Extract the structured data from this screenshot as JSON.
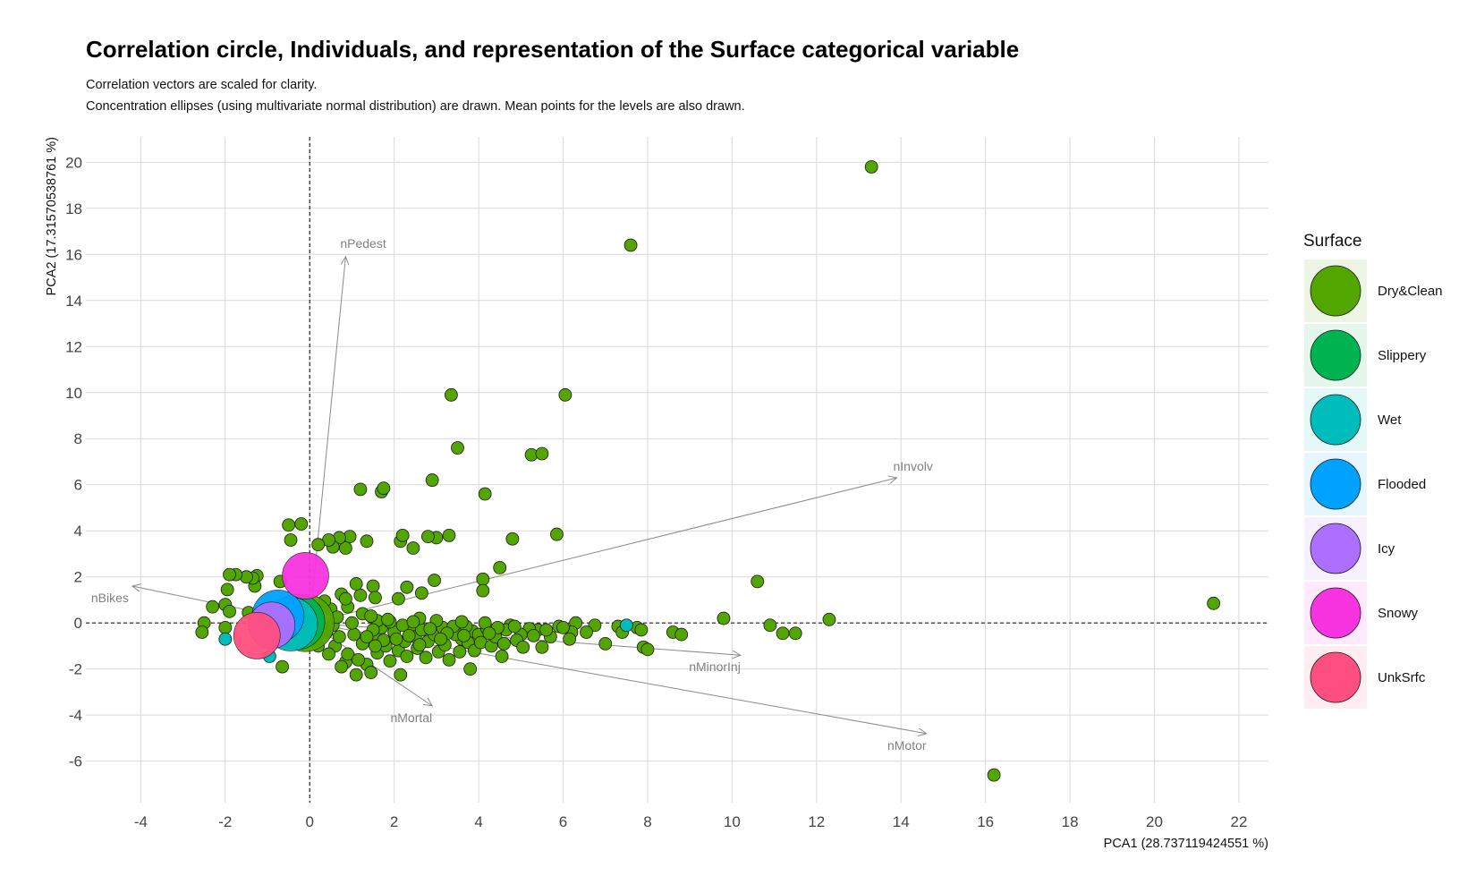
{
  "chart_data": {
    "type": "scatter",
    "title": "Correlation circle, Individuals, and representation of the Surface categorical variable",
    "subtitle_lines": [
      "Correlation vectors are scaled for clarity.",
      "Concentration ellipses (using multivariate normal distribution) are drawn. Mean points for the levels are also drawn."
    ],
    "xlabel": "PCA1 (28.737119424551 %)",
    "ylabel": "PCA2 (17.31570538761 %)",
    "xlim": [
      -5.3,
      22.7
    ],
    "ylim": [
      -7.8,
      21.1
    ],
    "x_ticks": [
      -4,
      -2,
      0,
      2,
      4,
      6,
      8,
      10,
      12,
      14,
      16,
      18,
      20,
      22
    ],
    "y_ticks": [
      -6,
      -4,
      -2,
      0,
      2,
      4,
      6,
      8,
      10,
      12,
      14,
      16,
      18,
      20
    ],
    "grid": true,
    "legend": {
      "title": "Surface",
      "position": "right",
      "entries": [
        "Dry&Clean",
        "Slippery",
        "Wet",
        "Flooded",
        "Icy",
        "Snowy",
        "UnkSrfc"
      ]
    },
    "colors": {
      "Dry&Clean": "#53a600",
      "Slippery": "#00b351",
      "Wet": "#00bdbd",
      "Flooded": "#00a2ff",
      "Icy": "#ad6fff",
      "Snowy": "#f833e0",
      "UnkSrfc": "#ff4f80"
    },
    "vectors": [
      {
        "label": "nPedest",
        "x": 0.85,
        "y": 15.9
      },
      {
        "label": "nInvolv",
        "x": 13.9,
        "y": 6.3
      },
      {
        "label": "nBikes",
        "x": -4.2,
        "y": 1.6
      },
      {
        "label": "nMinorInj",
        "x": 10.2,
        "y": -1.4
      },
      {
        "label": "nMortal",
        "x": 2.9,
        "y": -3.6
      },
      {
        "label": "nMotor",
        "x": 14.6,
        "y": -4.8
      }
    ],
    "series": [
      {
        "name": "Dry&Clean",
        "points": [
          [
            13.3,
            19.8
          ],
          [
            7.6,
            16.4
          ],
          [
            3.35,
            9.9
          ],
          [
            6.05,
            9.9
          ],
          [
            3.5,
            7.6
          ],
          [
            5.25,
            7.3
          ],
          [
            5.5,
            7.35
          ],
          [
            2.9,
            6.2
          ],
          [
            1.2,
            5.8
          ],
          [
            1.7,
            5.7
          ],
          [
            1.75,
            5.85
          ],
          [
            4.15,
            5.6
          ],
          [
            21.4,
            0.85
          ],
          [
            16.2,
            -6.6
          ],
          [
            10.6,
            1.8
          ],
          [
            12.3,
            0.15
          ],
          [
            9.8,
            0.2
          ],
          [
            10.9,
            -0.1
          ],
          [
            11.2,
            -0.45
          ],
          [
            11.5,
            -0.45
          ],
          [
            8.6,
            -0.4
          ],
          [
            8.8,
            -0.5
          ],
          [
            7.75,
            -0.2
          ],
          [
            7.85,
            -0.3
          ],
          [
            7.9,
            -1.05
          ],
          [
            8.0,
            -1.15
          ],
          [
            7.3,
            -0.15
          ],
          [
            7.4,
            -0.4
          ],
          [
            7.0,
            -0.9
          ],
          [
            6.75,
            -0.1
          ],
          [
            6.55,
            -0.4
          ],
          [
            6.3,
            0.0
          ],
          [
            6.2,
            -0.4
          ],
          [
            6.15,
            -0.7
          ],
          [
            5.9,
            -0.15
          ],
          [
            5.85,
            3.85
          ],
          [
            5.7,
            -0.6
          ],
          [
            5.5,
            -1.05
          ],
          [
            5.4,
            -0.3
          ],
          [
            5.2,
            -0.25
          ],
          [
            5.0,
            -0.5
          ],
          [
            4.8,
            3.65
          ],
          [
            4.75,
            -0.1
          ],
          [
            4.5,
            2.4
          ],
          [
            4.55,
            -1.45
          ],
          [
            4.1,
            1.9
          ],
          [
            4.1,
            1.4
          ],
          [
            3.85,
            -0.35
          ],
          [
            3.8,
            -2.0
          ],
          [
            3.6,
            -0.7
          ],
          [
            3.3,
            3.8
          ],
          [
            3.0,
            3.7
          ],
          [
            2.8,
            3.75
          ],
          [
            2.95,
            1.85
          ],
          [
            2.65,
            1.3
          ],
          [
            2.3,
            1.55
          ],
          [
            2.45,
            3.25
          ],
          [
            2.15,
            3.55
          ],
          [
            2.2,
            3.8
          ],
          [
            2.1,
            1.05
          ],
          [
            1.5,
            1.6
          ],
          [
            1.35,
            3.55
          ],
          [
            1.55,
            1.1
          ],
          [
            1.2,
            1.2
          ],
          [
            1.1,
            1.7
          ],
          [
            0.95,
            3.75
          ],
          [
            0.85,
            3.25
          ],
          [
            0.7,
            3.7
          ],
          [
            0.75,
            1.25
          ],
          [
            0.55,
            3.3
          ],
          [
            0.45,
            3.6
          ],
          [
            0.2,
            3.4
          ],
          [
            -0.2,
            4.3
          ],
          [
            -0.45,
            3.6
          ],
          [
            -0.5,
            4.25
          ],
          [
            -0.7,
            1.8
          ],
          [
            -1.25,
            2.05
          ],
          [
            -1.3,
            1.6
          ],
          [
            -1.35,
            1.95
          ],
          [
            -1.5,
            2.0
          ],
          [
            -1.75,
            2.1
          ],
          [
            -1.9,
            2.1
          ],
          [
            -1.95,
            1.45
          ],
          [
            -2.0,
            0.8
          ],
          [
            -2.3,
            0.7
          ],
          [
            -1.9,
            0.5
          ],
          [
            -2.5,
            0.0
          ],
          [
            -2.55,
            -0.4
          ],
          [
            -2.0,
            -0.2
          ],
          [
            -1.2,
            0.35
          ],
          [
            -1.45,
            0.45
          ],
          [
            -0.65,
            -1.9
          ],
          [
            0.2,
            -1.0
          ],
          [
            0.4,
            -0.4
          ],
          [
            0.6,
            -1.0
          ],
          [
            0.7,
            -0.6
          ],
          [
            0.85,
            -1.7
          ],
          [
            0.9,
            -1.35
          ],
          [
            1.05,
            -0.5
          ],
          [
            1.1,
            -2.25
          ],
          [
            1.25,
            -0.9
          ],
          [
            1.35,
            -1.8
          ],
          [
            1.45,
            -2.15
          ],
          [
            1.55,
            -0.55
          ],
          [
            1.6,
            -1.3
          ],
          [
            1.7,
            -0.2
          ],
          [
            1.8,
            -1.0
          ],
          [
            1.9,
            -1.65
          ],
          [
            2.0,
            -0.4
          ],
          [
            2.1,
            -1.2
          ],
          [
            2.15,
            -2.25
          ],
          [
            2.25,
            -0.8
          ],
          [
            2.3,
            -1.45
          ],
          [
            2.4,
            -0.15
          ],
          [
            2.5,
            -0.6
          ],
          [
            2.55,
            -1.1
          ],
          [
            2.65,
            -0.3
          ],
          [
            2.75,
            -1.5
          ],
          [
            2.8,
            -0.8
          ],
          [
            2.95,
            -0.5
          ],
          [
            3.05,
            -1.25
          ],
          [
            3.15,
            -0.2
          ],
          [
            3.2,
            -0.95
          ],
          [
            3.3,
            -1.6
          ],
          [
            3.45,
            -0.5
          ],
          [
            3.55,
            -1.25
          ],
          [
            3.7,
            -0.15
          ],
          [
            3.75,
            -0.85
          ],
          [
            3.9,
            -1.2
          ],
          [
            4.0,
            -0.5
          ],
          [
            4.05,
            -0.85
          ],
          [
            4.2,
            -0.25
          ],
          [
            4.3,
            -1.0
          ],
          [
            4.4,
            -0.6
          ],
          [
            4.6,
            -0.9
          ],
          [
            4.65,
            -0.3
          ],
          [
            4.9,
            -0.75
          ],
          [
            5.05,
            -1.05
          ],
          [
            0.5,
            0.6
          ],
          [
            0.9,
            0.7
          ],
          [
            1.25,
            0.4
          ],
          [
            1.6,
            0.1
          ],
          [
            0.3,
            -0.3
          ],
          [
            0.55,
            -0.1
          ],
          [
            1.0,
            0.0
          ],
          [
            1.5,
            -0.3
          ],
          [
            1.9,
            0.05
          ],
          [
            2.2,
            -0.1
          ],
          [
            2.6,
            0.2
          ],
          [
            3.0,
            0.1
          ],
          [
            3.4,
            -0.15
          ],
          [
            0.65,
            0.25
          ],
          [
            1.35,
            -0.6
          ],
          [
            1.75,
            -0.75
          ],
          [
            2.35,
            -0.55
          ],
          [
            2.85,
            -0.25
          ],
          [
            3.25,
            -0.45
          ],
          [
            3.6,
            0.05
          ],
          [
            4.15,
            0.0
          ],
          [
            4.45,
            -0.2
          ],
          [
            4.85,
            -0.15
          ],
          [
            5.3,
            -0.55
          ],
          [
            5.6,
            -0.3
          ],
          [
            6.0,
            -0.2
          ],
          [
            0.15,
            -0.7
          ],
          [
            0.45,
            -1.35
          ],
          [
            0.75,
            -1.9
          ],
          [
            1.15,
            -1.6
          ],
          [
            1.55,
            -1.0
          ],
          [
            2.05,
            -0.7
          ],
          [
            2.6,
            -0.95
          ],
          [
            3.1,
            -0.7
          ],
          [
            3.65,
            -0.55
          ],
          [
            4.25,
            -0.45
          ],
          [
            0.35,
            0.95
          ],
          [
            0.85,
            1.05
          ],
          [
            0.1,
            0.5
          ],
          [
            -0.15,
            0.9
          ],
          [
            0.25,
            -0.15
          ],
          [
            1.45,
            0.3
          ],
          [
            1.85,
            0.15
          ],
          [
            2.45,
            0.05
          ]
        ]
      },
      {
        "name": "Wet",
        "points": [
          [
            -2.0,
            -0.7
          ],
          [
            -0.95,
            -1.45
          ],
          [
            7.5,
            -0.1
          ]
        ]
      }
    ],
    "mean_points": [
      {
        "level": "Dry&Clean",
        "x": -0.1,
        "y": 0.0,
        "r": 32
      },
      {
        "level": "Slippery",
        "x": -0.3,
        "y": 0.05,
        "r": 31
      },
      {
        "level": "Wet",
        "x": -0.45,
        "y": -0.05,
        "r": 30
      },
      {
        "level": "Flooded",
        "x": -0.75,
        "y": 0.3,
        "r": 29
      },
      {
        "level": "Icy",
        "x": -0.9,
        "y": -0.1,
        "r": 26
      },
      {
        "level": "Snowy",
        "x": -0.1,
        "y": 2.05,
        "r": 26
      },
      {
        "level": "UnkSrfc",
        "x": -1.25,
        "y": -0.55,
        "r": 26
      }
    ]
  }
}
